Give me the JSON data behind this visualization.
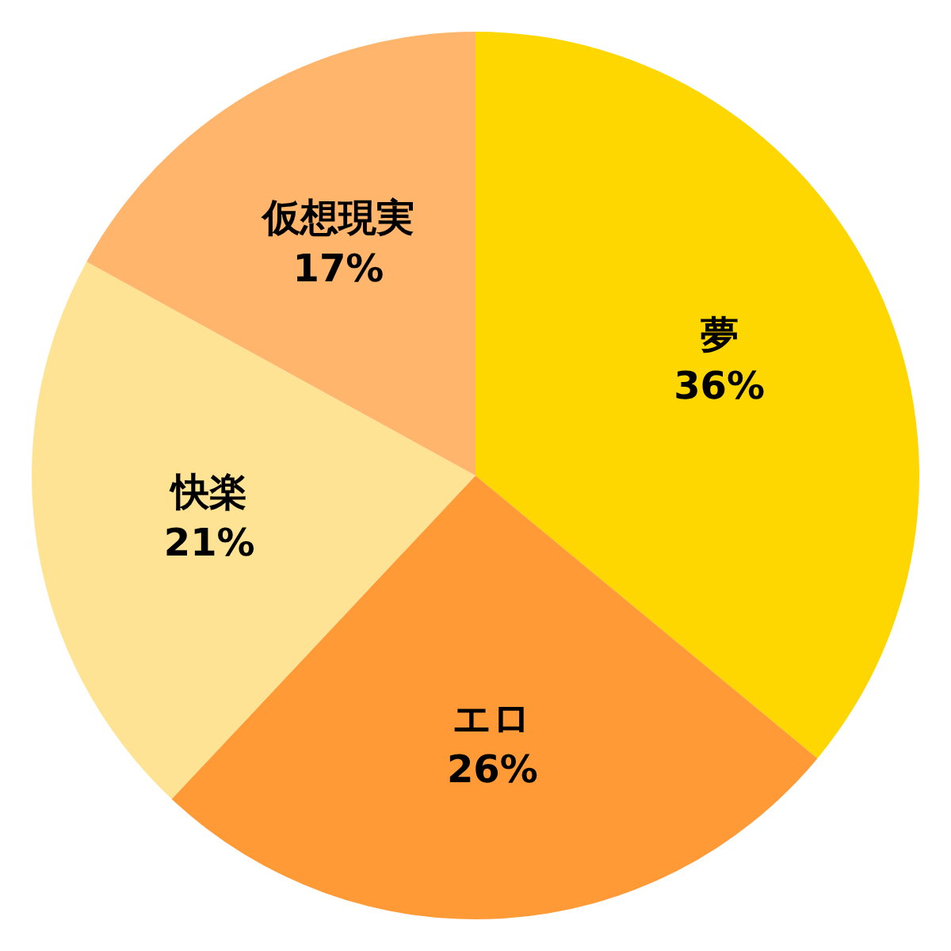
{
  "chart_data": {
    "type": "pie",
    "categories": [
      "夢",
      "エロ",
      "快楽",
      "仮想現実"
    ],
    "values": [
      36,
      26,
      21,
      17
    ],
    "value_labels": [
      "36%",
      "26%",
      "21%",
      "17%"
    ],
    "colors": [
      "#ffd700",
      "#ff9a36",
      "#ffe394",
      "#ffb56b"
    ]
  }
}
